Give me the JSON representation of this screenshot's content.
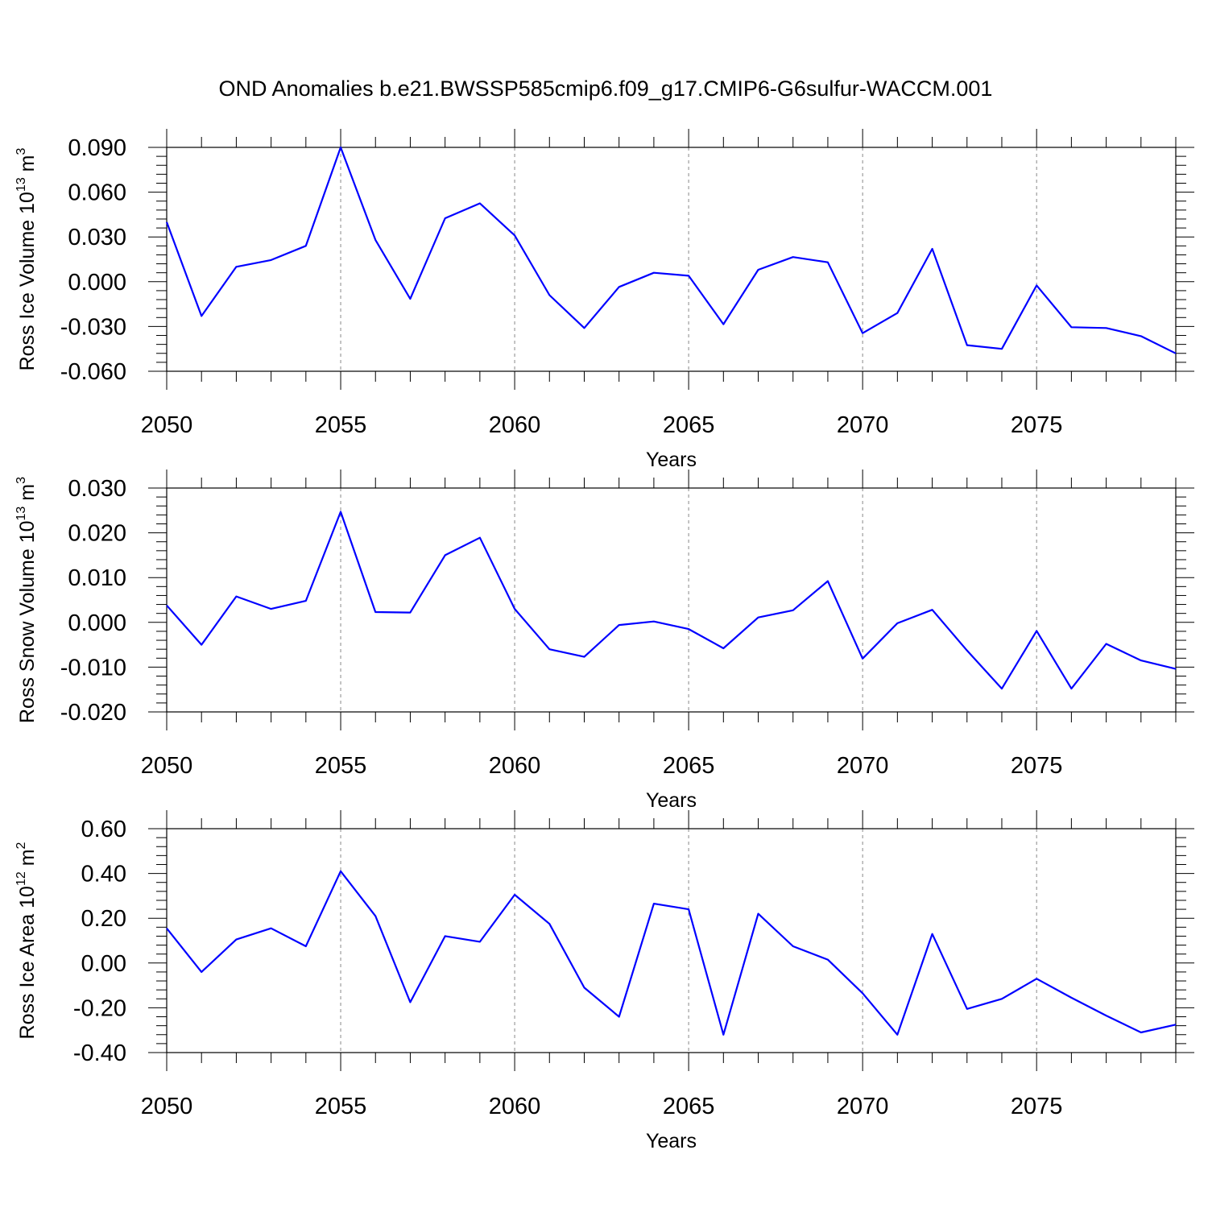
{
  "title": "OND Anomalies b.e21.BWSSP585cmip6.f09_g17.CMIP6-G6sulfur-WACCM.001",
  "chart_data": [
    {
      "type": "line",
      "ylabel": {
        "text": "Ross Ice Volume 10",
        "exp": "13",
        "unit": " m",
        "unit_exp": "3"
      },
      "xlabel": "Years",
      "xlim": [
        2050,
        2079
      ],
      "ylim": [
        -0.06,
        0.09
      ],
      "yticks": [
        0.09,
        0.06,
        0.03,
        0.0,
        -0.03,
        -0.06
      ],
      "ytick_labels": [
        "0.090",
        "0.060",
        "0.030",
        "0.000",
        "-0.030",
        "-0.060"
      ],
      "xticks": [
        2050,
        2055,
        2060,
        2065,
        2070,
        2075
      ],
      "xtick_labels": [
        "2050",
        "2055",
        "2060",
        "2065",
        "2070",
        "2075"
      ],
      "grid": "dashed vertical at major x ticks",
      "series": [
        {
          "color": "#0000ff",
          "x": [
            2050,
            2051,
            2052,
            2053,
            2054,
            2055,
            2056,
            2057,
            2058,
            2059,
            2060,
            2061,
            2062,
            2063,
            2064,
            2065,
            2066,
            2067,
            2068,
            2069,
            2070,
            2071,
            2072,
            2073,
            2074,
            2075,
            2076,
            2077,
            2078,
            2079
          ],
          "values": [
            0.04,
            -0.023,
            0.01,
            0.0145,
            0.024,
            0.09,
            0.028,
            -0.0115,
            0.0425,
            0.0525,
            0.031,
            -0.009,
            -0.031,
            -0.0035,
            0.006,
            0.004,
            -0.0285,
            0.008,
            0.0165,
            0.013,
            -0.0345,
            -0.021,
            0.022,
            -0.0425,
            -0.045,
            -0.0025,
            -0.0305,
            -0.031,
            -0.0365,
            -0.048
          ]
        }
      ]
    },
    {
      "type": "line",
      "ylabel": {
        "text": "Ross Snow Volume 10",
        "exp": "13",
        "unit": " m",
        "unit_exp": "3"
      },
      "xlabel": "Years",
      "xlim": [
        2050,
        2079
      ],
      "ylim": [
        -0.02,
        0.03
      ],
      "yticks": [
        0.03,
        0.02,
        0.01,
        0.0,
        -0.01,
        -0.02
      ],
      "ytick_labels": [
        "0.030",
        "0.020",
        "0.010",
        "0.000",
        "-0.010",
        "-0.020"
      ],
      "xticks": [
        2050,
        2055,
        2060,
        2065,
        2070,
        2075
      ],
      "xtick_labels": [
        "2050",
        "2055",
        "2060",
        "2065",
        "2070",
        "2075"
      ],
      "grid": "dashed vertical at major x ticks",
      "series": [
        {
          "color": "#0000ff",
          "x": [
            2050,
            2051,
            2052,
            2053,
            2054,
            2055,
            2056,
            2057,
            2058,
            2059,
            2060,
            2061,
            2062,
            2063,
            2064,
            2065,
            2066,
            2067,
            2068,
            2069,
            2070,
            2071,
            2072,
            2073,
            2074,
            2075,
            2076,
            2077,
            2078,
            2079
          ],
          "values": [
            0.0038,
            -0.005,
            0.0058,
            0.003,
            0.0048,
            0.0247,
            0.0023,
            0.0022,
            0.015,
            0.0189,
            0.003,
            -0.006,
            -0.0077,
            -0.0006,
            0.0002,
            -0.0015,
            -0.0058,
            0.0011,
            0.0027,
            0.0092,
            -0.0081,
            -0.0002,
            0.0028,
            -0.0063,
            -0.0148,
            -0.0019,
            -0.0148,
            -0.0048,
            -0.0085,
            -0.0104
          ]
        }
      ]
    },
    {
      "type": "line",
      "ylabel": {
        "text": "Ross Ice Area 10",
        "exp": "12",
        "unit": " m",
        "unit_exp": "2"
      },
      "xlabel": "Years",
      "xlim": [
        2050,
        2079
      ],
      "ylim": [
        -0.4,
        0.6
      ],
      "yticks": [
        0.6,
        0.4,
        0.2,
        0.0,
        -0.2,
        -0.4
      ],
      "ytick_labels": [
        "0.60",
        "0.40",
        "0.20",
        "0.00",
        "-0.20",
        "-0.40"
      ],
      "xticks": [
        2050,
        2055,
        2060,
        2065,
        2070,
        2075
      ],
      "xtick_labels": [
        "2050",
        "2055",
        "2060",
        "2065",
        "2070",
        "2075"
      ],
      "grid": "dashed vertical at major x ticks",
      "series": [
        {
          "color": "#0000ff",
          "x": [
            2050,
            2051,
            2052,
            2053,
            2054,
            2055,
            2056,
            2057,
            2058,
            2059,
            2060,
            2061,
            2062,
            2063,
            2064,
            2065,
            2066,
            2067,
            2068,
            2069,
            2070,
            2071,
            2072,
            2073,
            2074,
            2075,
            2076,
            2077,
            2078,
            2079
          ],
          "values": [
            0.155,
            -0.04,
            0.105,
            0.155,
            0.075,
            0.41,
            0.21,
            -0.175,
            0.12,
            0.095,
            0.305,
            0.175,
            -0.11,
            -0.24,
            0.265,
            0.24,
            -0.32,
            0.22,
            0.075,
            0.015,
            -0.135,
            -0.32,
            0.13,
            -0.205,
            -0.16,
            -0.07,
            -0.155,
            -0.235,
            -0.31,
            -0.275
          ]
        }
      ]
    }
  ]
}
